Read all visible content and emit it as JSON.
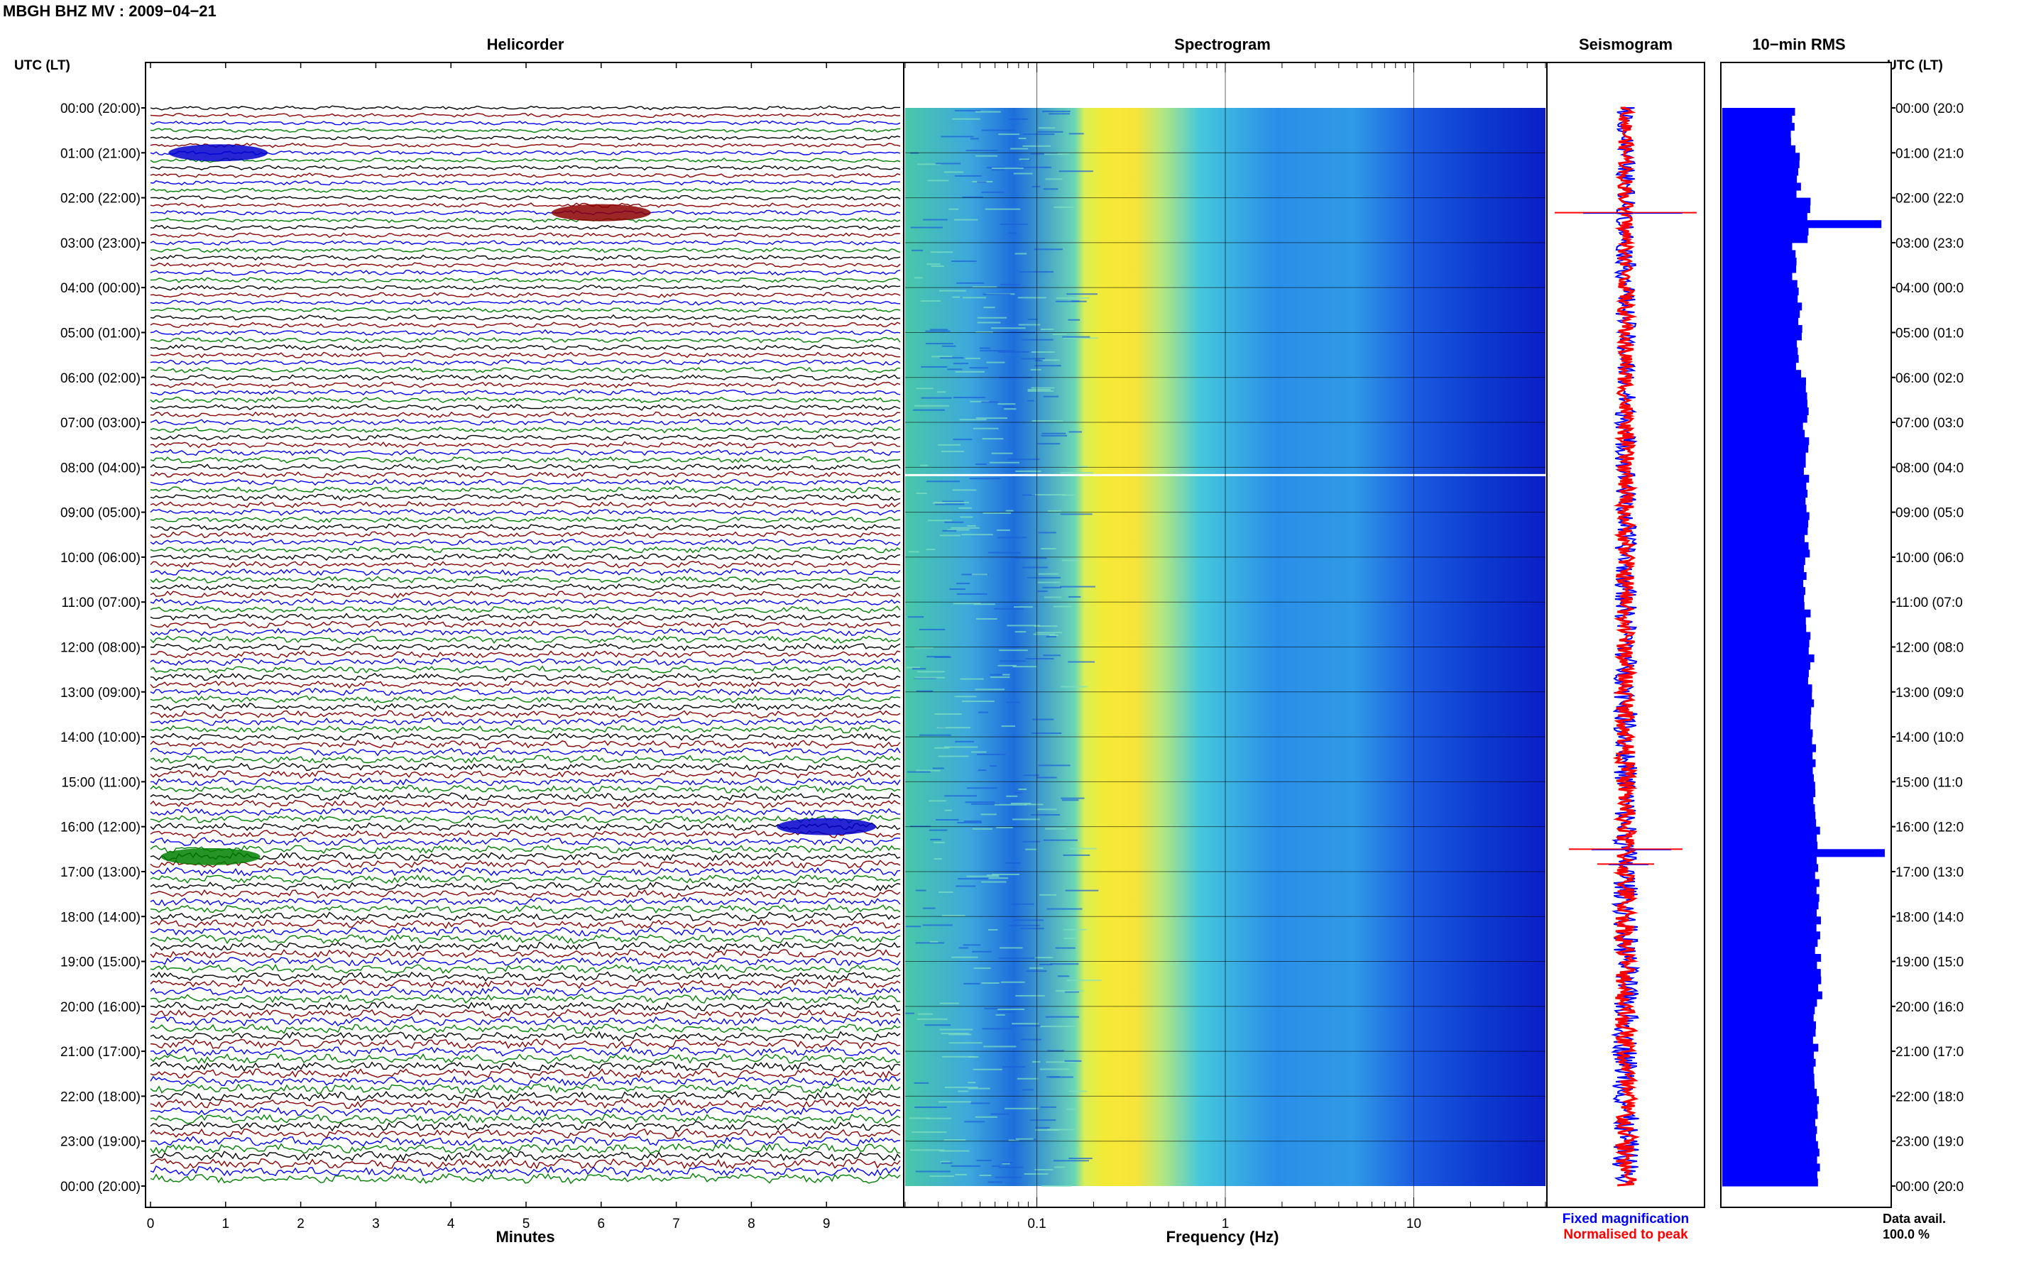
{
  "title": "MBGH BHZ MV : 2009−04−21",
  "time_axis_label": "UTC (LT)",
  "time_ticks": [
    "00:00 (20:00)",
    "01:00 (21:00)",
    "02:00 (22:00)",
    "03:00 (23:00)",
    "04:00 (00:00)",
    "05:00 (01:00)",
    "06:00 (02:00)",
    "07:00 (03:00)",
    "08:00 (04:00)",
    "09:00 (05:00)",
    "10:00 (06:00)",
    "11:00 (07:00)",
    "12:00 (08:00)",
    "13:00 (09:00)",
    "14:00 (10:00)",
    "15:00 (11:00)",
    "16:00 (12:00)",
    "17:00 (13:00)",
    "18:00 (14:00)",
    "19:00 (15:00)",
    "20:00 (16:00)",
    "21:00 (17:00)",
    "22:00 (18:00)",
    "23:00 (19:00)",
    "00:00 (20:00)"
  ],
  "time_ticks_right": [
    "00:00 (20:0",
    "01:00 (21:0",
    "02:00 (22:0",
    "03:00 (23:0",
    "04:00 (00:0",
    "05:00 (01:0",
    "06:00 (02:0",
    "07:00 (03:0",
    "08:00 (04:0",
    "09:00 (05:0",
    "10:00 (06:0",
    "11:00 (07:0",
    "12:00 (08:0",
    "13:00 (09:0",
    "14:00 (10:0",
    "15:00 (11:0",
    "16:00 (12:0",
    "17:00 (13:0",
    "18:00 (14:0",
    "19:00 (15:0",
    "20:00 (16:0",
    "21:00 (17:0",
    "22:00 (18:0",
    "23:00 (19:0",
    "00:00 (20:0"
  ],
  "footer": {
    "fixed_magnification": "Fixed magnification",
    "normalised_to_peak": "Normalised to peak",
    "data_avail_label": "Data avail.",
    "data_avail_value": "100.0 %"
  },
  "colors": {
    "trace_cycle": [
      "#000000",
      "#8b0000",
      "#0000ff",
      "#008000"
    ],
    "rms_bar": "#0000ff",
    "seis_fixed": "#0000ff",
    "seis_normalised": "#ff0000"
  },
  "chart_data": [
    {
      "type": "line",
      "title": "Helicorder",
      "xlabel": "Minutes",
      "ylabel": "UTC (LT)",
      "x_ticks": [
        "0",
        "1",
        "2",
        "3",
        "4",
        "5",
        "6",
        "7",
        "8",
        "9"
      ],
      "xlim": [
        0,
        10
      ],
      "rows_per_hour": 6,
      "rows": 144,
      "events": [
        {
          "time": "01:00",
          "minute": 0.9,
          "color": "blue"
        },
        {
          "time": "02:20",
          "minute": 6.0,
          "color": "darkred"
        },
        {
          "time": "16:00",
          "minute": 9.0,
          "color": "blue"
        },
        {
          "time": "16:40",
          "minute": 0.8,
          "color": "green"
        }
      ]
    },
    {
      "type": "heatmap",
      "title": "Spectrogram",
      "xlabel": "Frequency (Hz)",
      "x_scale": "log",
      "x_ticks": [
        "0.1",
        "1",
        "10"
      ],
      "xlim": [
        0.02,
        50
      ]
    },
    {
      "type": "line",
      "title": "Seismogram",
      "series": [
        {
          "name": "Fixed magnification"
        },
        {
          "name": "Normalised to peak"
        }
      ],
      "events": [
        "02:20",
        "16:30",
        "16:50"
      ]
    },
    {
      "type": "bar",
      "title": "10−min RMS",
      "orientation": "horizontal",
      "relative_values_by_hour": [
        0.42,
        0.45,
        0.52,
        0.43,
        0.46,
        0.46,
        0.5,
        0.5,
        0.5,
        0.51,
        0.5,
        0.51,
        0.53,
        0.54,
        0.55,
        0.56,
        0.57,
        0.57,
        0.57,
        0.58,
        0.56,
        0.55,
        0.56,
        0.58
      ],
      "spikes": [
        {
          "time": "02:00",
          "value": 0.95
        },
        {
          "time": "16:00",
          "value": 0.97
        }
      ]
    }
  ]
}
